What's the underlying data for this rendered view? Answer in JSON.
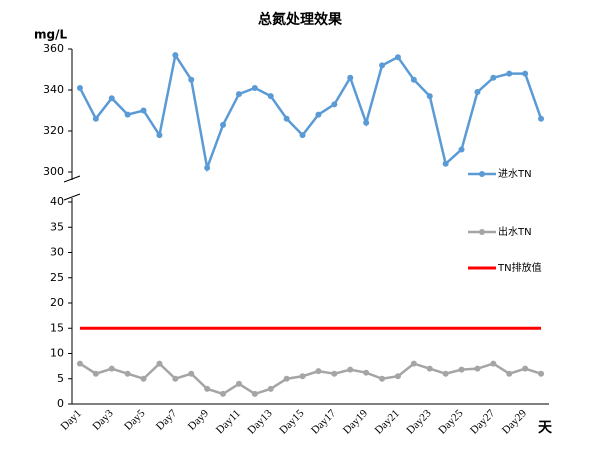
{
  "chart_data": [
    {
      "type": "line",
      "title": "总氮处理效果",
      "ylabel": "mg/L",
      "ylim": [
        300,
        360
      ],
      "yticks": [
        300,
        320,
        340,
        360
      ],
      "legend": "right",
      "series": [
        {
          "name": "进水TN",
          "color": "#5b9bd5",
          "marker": true,
          "values": [
            341,
            326,
            336,
            328,
            330,
            318,
            357,
            345,
            302,
            323,
            338,
            341,
            337,
            326,
            318,
            328,
            333,
            346,
            324,
            352,
            356,
            345,
            337,
            304,
            311,
            339,
            346,
            348,
            348,
            326
          ]
        }
      ]
    },
    {
      "type": "line",
      "xlabel": "天",
      "categories": [
        "Day1",
        null,
        "Day3",
        null,
        "Day5",
        null,
        "Day7",
        null,
        "Day9",
        null,
        "Day11",
        null,
        "Day13",
        null,
        "Day15",
        null,
        "Day17",
        null,
        "Day19",
        null,
        "Day21",
        null,
        "Day23",
        null,
        "Day25",
        null,
        "Day27",
        null,
        "Day29",
        null
      ],
      "ylim": [
        0,
        40
      ],
      "yticks": [
        0,
        5,
        10,
        15,
        20,
        25,
        30,
        35,
        40
      ],
      "legend": "right",
      "series": [
        {
          "name": "出水TN",
          "color": "#a5a5a5",
          "marker": true,
          "values": [
            8,
            6,
            7,
            6,
            5,
            8,
            5,
            6,
            3,
            2,
            4,
            2,
            3,
            5,
            5.5,
            6.5,
            6,
            6.8,
            6.2,
            5,
            5.5,
            8,
            7,
            6,
            6.8,
            7,
            8,
            6,
            7,
            6
          ]
        },
        {
          "name": "TN排放值",
          "color": "#ff0000",
          "marker": false,
          "values": [
            15,
            15,
            15,
            15,
            15,
            15,
            15,
            15,
            15,
            15,
            15,
            15,
            15,
            15,
            15,
            15,
            15,
            15,
            15,
            15,
            15,
            15,
            15,
            15,
            15,
            15,
            15,
            15,
            15,
            15
          ]
        }
      ]
    }
  ]
}
